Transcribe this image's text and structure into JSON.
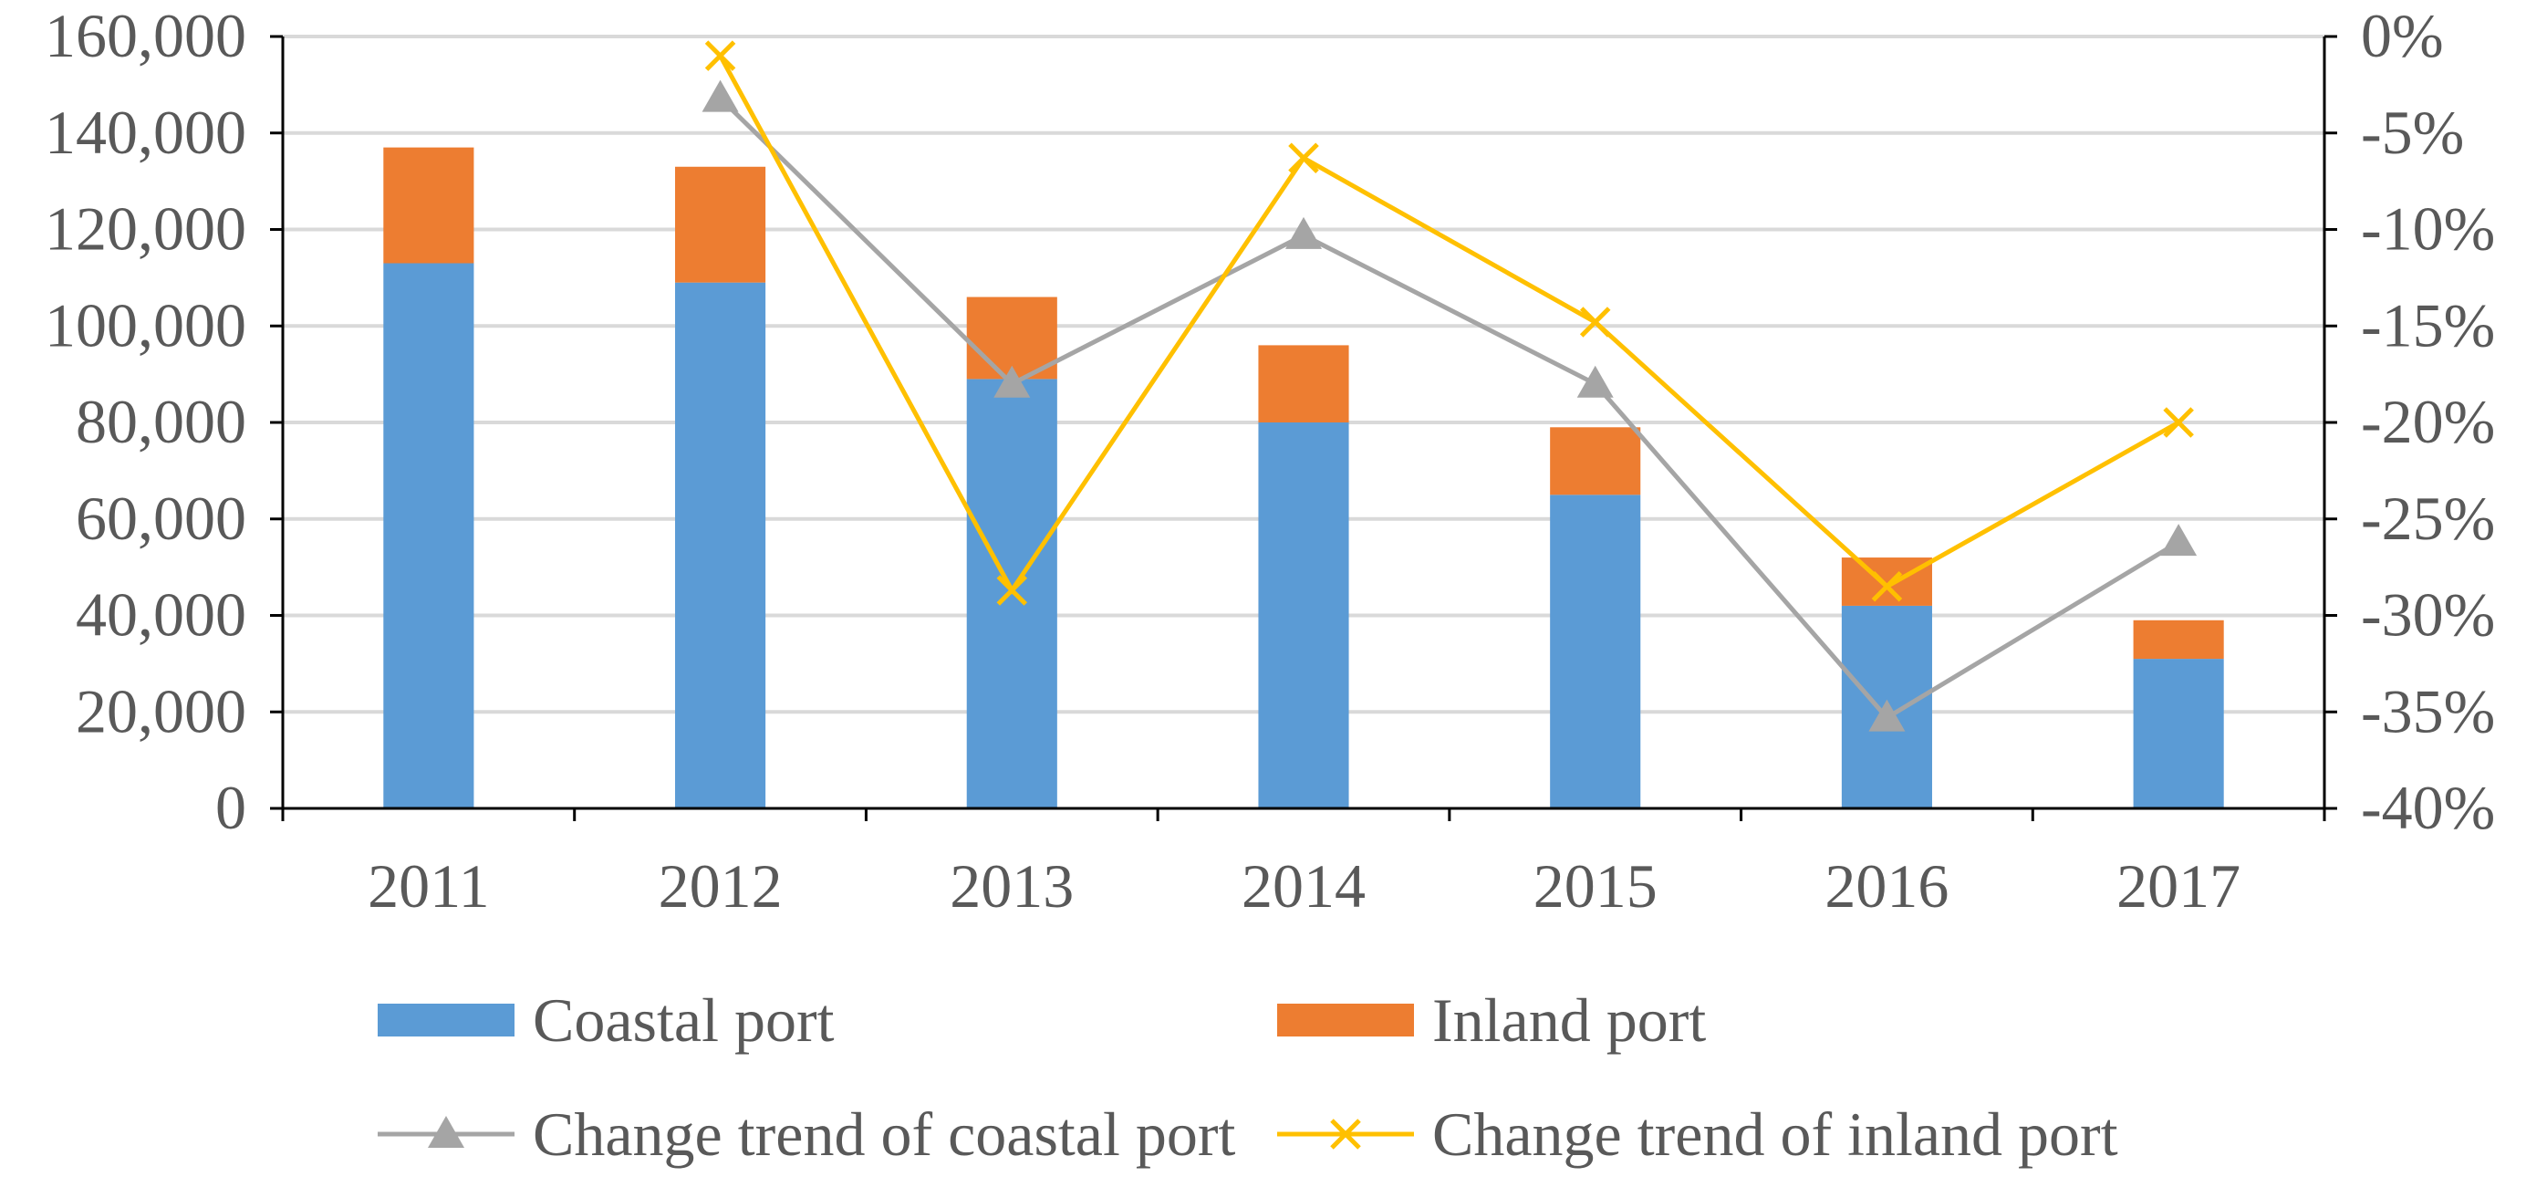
{
  "chart_data": {
    "type": "bar",
    "stacked": true,
    "categories": [
      "2011",
      "2012",
      "2013",
      "2014",
      "2015",
      "2016",
      "2017"
    ],
    "series": [
      {
        "name": "Coastal port",
        "kind": "bar",
        "axis": "left",
        "color": "#5B9BD5",
        "values": [
          113000,
          109000,
          89000,
          80000,
          65000,
          42000,
          31000
        ]
      },
      {
        "name": "Inland port",
        "kind": "bar",
        "axis": "left",
        "color": "#ED7D31",
        "values": [
          24000,
          24000,
          17000,
          16000,
          14000,
          10000,
          8000
        ]
      },
      {
        "name": "Change trend of coastal port",
        "kind": "line",
        "axis": "right",
        "marker": "triangle",
        "color": "#A5A5A5",
        "values": [
          null,
          -3.2,
          -18.0,
          -10.3,
          -18.0,
          -35.3,
          -26.2
        ]
      },
      {
        "name": "Change trend of inland port",
        "kind": "line",
        "axis": "right",
        "marker": "x",
        "color": "#FFC000",
        "values": [
          null,
          -1.0,
          -28.7,
          -6.3,
          -14.8,
          -28.5,
          -20.0
        ]
      }
    ],
    "left_axis": {
      "ylim": [
        0,
        160000
      ],
      "ticks": [
        0,
        20000,
        40000,
        60000,
        80000,
        100000,
        120000,
        140000,
        160000
      ],
      "tick_labels": [
        "0",
        "20,000",
        "40,000",
        "60,000",
        "80,000",
        "100,000",
        "120,000",
        "140,000",
        "160,000"
      ]
    },
    "right_axis": {
      "ylim": [
        -40,
        0
      ],
      "ticks": [
        -40,
        -35,
        -30,
        -25,
        -20,
        -15,
        -10,
        -5,
        0
      ],
      "tick_labels": [
        "-40%",
        "-35%",
        "-30%",
        "-25%",
        "-20%",
        "-15%",
        "-10%",
        "-5%",
        "0%"
      ]
    },
    "title": "",
    "xlabel": "",
    "ylabel": "",
    "grid": true,
    "legend": {
      "position": "bottom",
      "entries": [
        "Coastal port",
        "Inland port",
        "Change trend of coastal port",
        "Change trend of inland port"
      ]
    },
    "colors": {
      "axis": "#000000",
      "grid": "#D9D9D9",
      "text": "#595959"
    }
  }
}
